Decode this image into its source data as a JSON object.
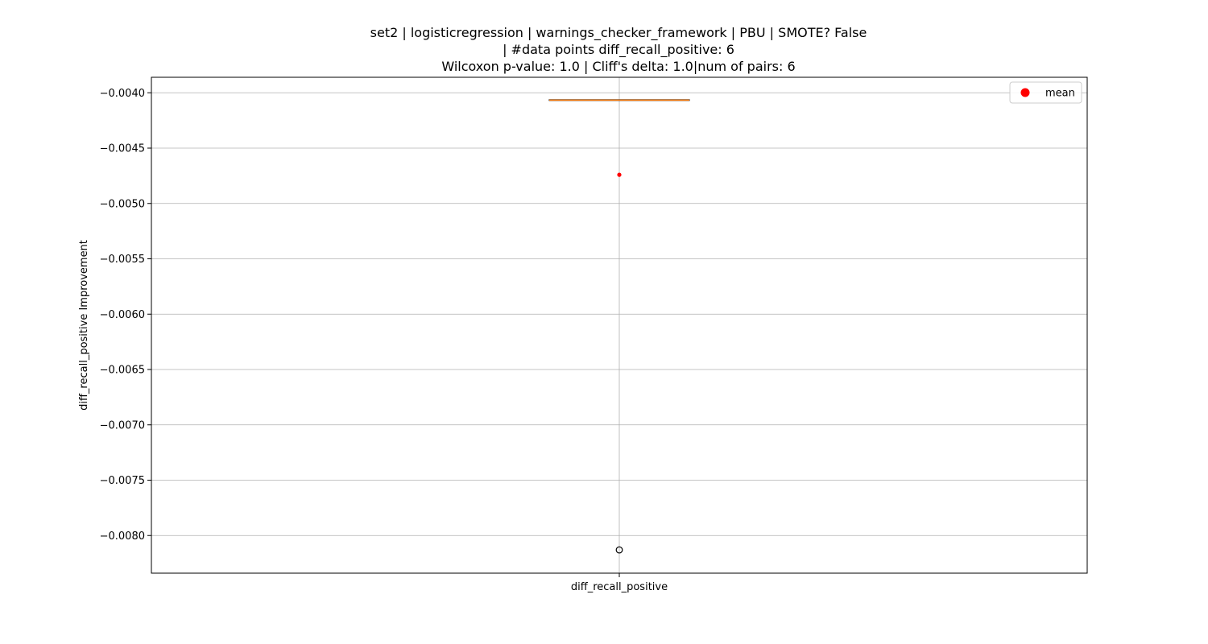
{
  "chart_data": {
    "type": "box",
    "title_lines": [
      "set2 | logisticregression | warnings_checker_framework | PBU | SMOTE? False",
      "| #data points diff_recall_positive: 6",
      "Wilcoxon p-value: 1.0 | Cliff's delta: 1.0|num of pairs: 6"
    ],
    "xlabel": "",
    "ylabel": "diff_recall_positive Improvement",
    "categories": [
      "diff_recall_positive"
    ],
    "ylim": [
      -0.00834,
      -0.00386
    ],
    "yticks": [
      -0.004,
      -0.0045,
      -0.005,
      -0.0055,
      -0.006,
      -0.0065,
      -0.007,
      -0.0075,
      -0.008
    ],
    "ytick_labels": [
      "−0.0040",
      "−0.0045",
      "−0.0050",
      "−0.0055",
      "−0.0060",
      "−0.0065",
      "−0.0070",
      "−0.0075",
      "−0.0080"
    ],
    "box": {
      "q1": -0.004066,
      "median": -0.004066,
      "q3": -0.004066,
      "whisker_low": -0.004066,
      "whisker_high": -0.004066,
      "mean": -0.004741,
      "outliers": [
        -0.00813
      ]
    },
    "grid": true,
    "legend": {
      "position": "top-right",
      "entries": [
        {
          "label": "mean",
          "color": "#ff0000",
          "marker": "circle"
        }
      ]
    },
    "colors": {
      "median": "#ff7f0e",
      "box": "#000000",
      "mean": "#ff0000",
      "grid": "#b0b0b0",
      "outlier": "#000000"
    }
  }
}
